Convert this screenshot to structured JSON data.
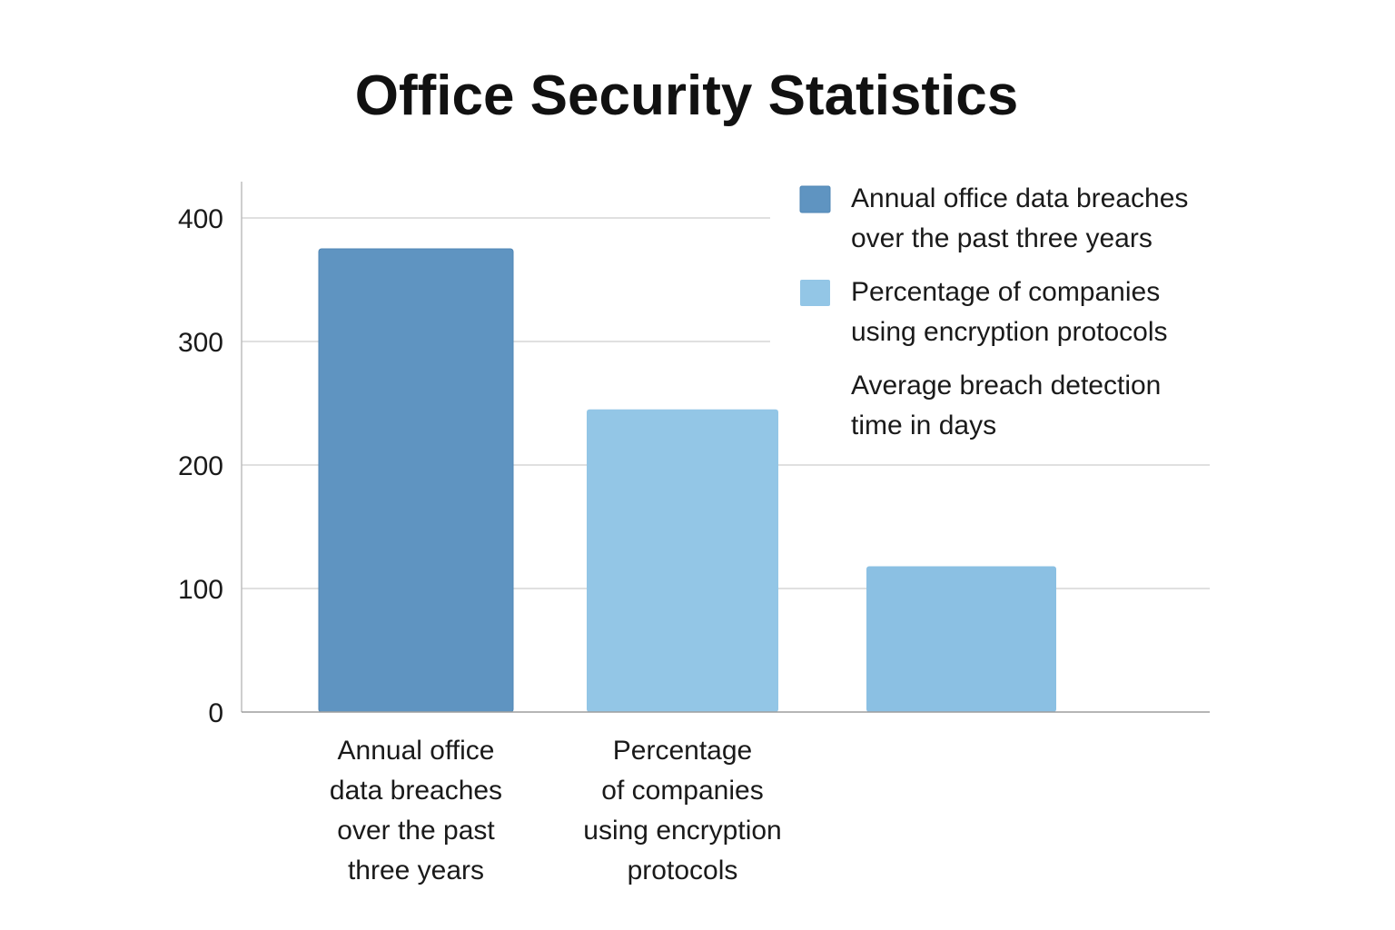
{
  "chart_data": {
    "type": "bar",
    "title": "Office Security Statistics",
    "xlabel": "",
    "ylabel": "",
    "ylim": [
      0,
      430
    ],
    "yticks": [
      0,
      100,
      200,
      300,
      400
    ],
    "grid": true,
    "legend_position": "top-right",
    "categories": [
      [
        "Annual office",
        "data breaches",
        "over the past",
        "three years"
      ],
      [
        "Percentage",
        "of companies",
        "using encryption",
        "protocols"
      ],
      []
    ],
    "values": [
      375,
      245,
      118
    ],
    "colors": [
      "#5f94c1",
      "#93c6e6",
      "#8bc0e3"
    ],
    "legend": [
      {
        "lines": [
          "Annual office data breaches",
          "over the past three years"
        ],
        "color": "#5f94c1",
        "swatch": true
      },
      {
        "lines": [
          "Percentage of companies",
          "using encryption protocols"
        ],
        "color": "#93c6e6",
        "swatch": true
      },
      {
        "lines": [
          "Average breach detection",
          "time in days"
        ],
        "color": "#8bc0e3",
        "swatch": false
      }
    ]
  }
}
